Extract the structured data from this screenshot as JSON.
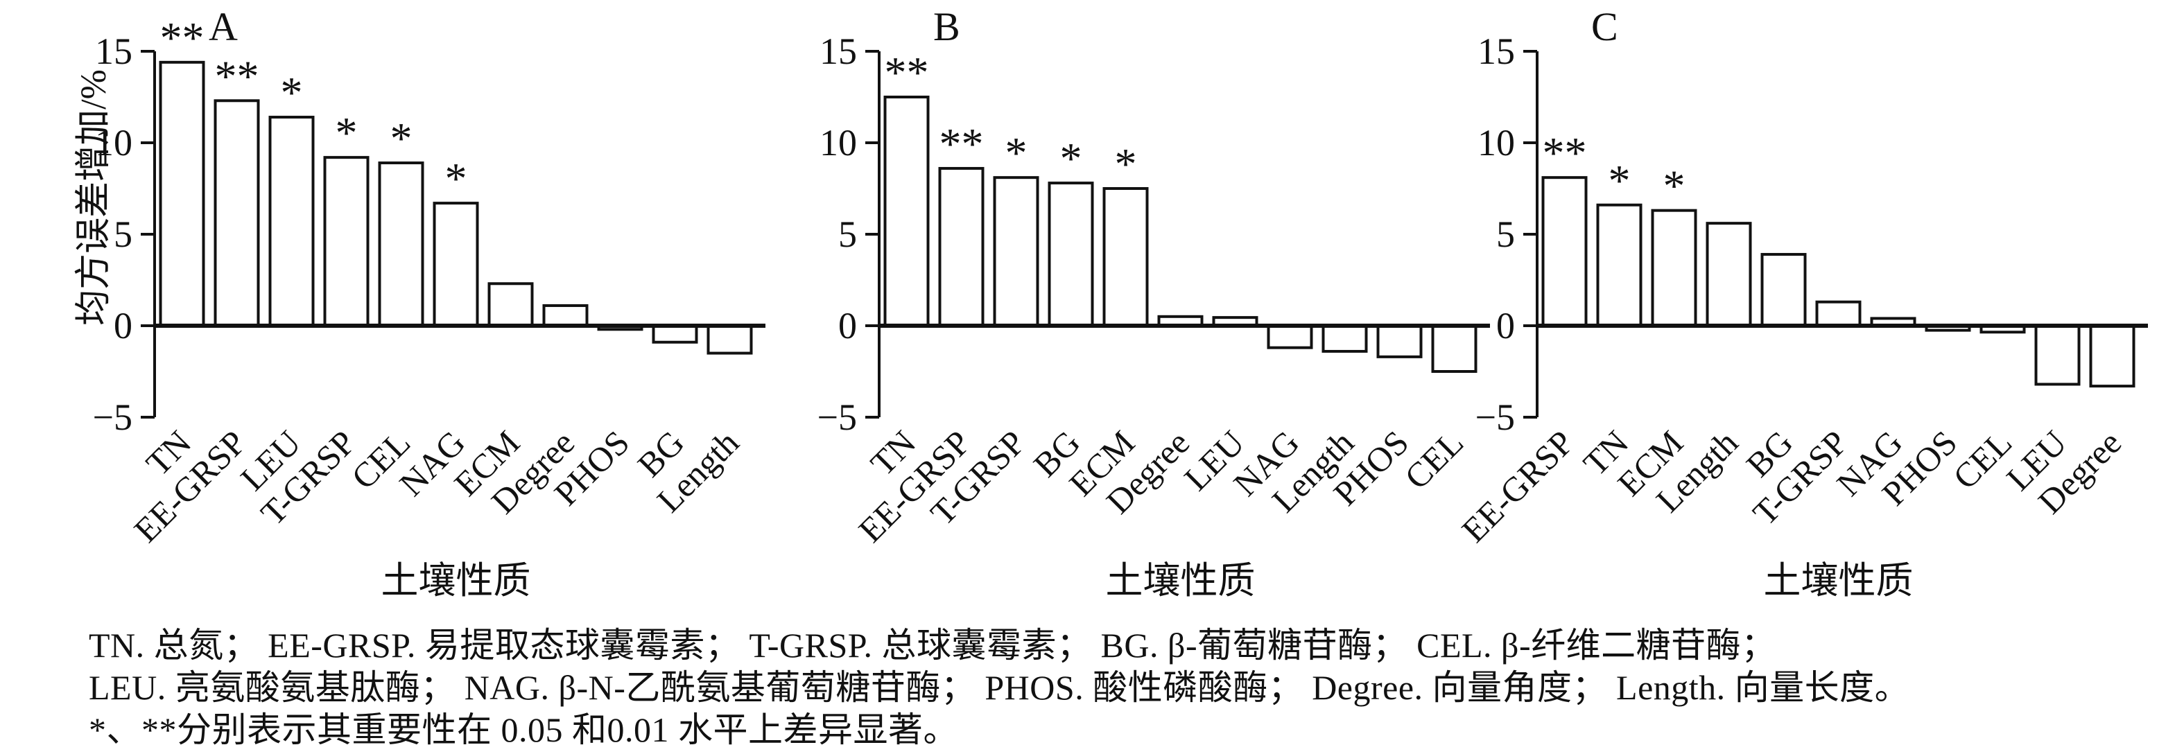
{
  "caption": {
    "lines": [
      "TN. 总氮； EE-GRSP. 易提取态球囊霉素； T-GRSP. 总球囊霉素； BG. β-葡萄糖苷酶； CEL. β-纤维二糖苷酶；",
      "LEU. 亮氨酸氨基肽酶； NAG. β-N-乙酰氨基葡萄糖苷酶； PHOS. 酸性磷酸酶； Degree. 向量角度； Length. 向量长度。",
      "*、**分别表示其重要性在 0.05 和0.01 水平上差异显著。"
    ]
  },
  "chart_data": [
    {
      "type": "bar",
      "panel_label": "A",
      "ylabel": "均方误差增加/%",
      "xlabel": "土壤性质",
      "ylim": [
        -5,
        15
      ],
      "yticks": [
        15,
        10,
        5,
        0,
        -5
      ],
      "grid": false,
      "bar_fill": "#ffffff",
      "bar_stroke": "#111111",
      "categories": [
        "TN",
        "EE-GRSP",
        "LEU",
        "T-GRSP",
        "CEL",
        "NAG",
        "ECM",
        "Degree",
        "PHOS",
        "BG",
        "Length"
      ],
      "values": [
        14.4,
        12.3,
        11.4,
        9.2,
        8.9,
        6.7,
        2.3,
        1.1,
        -0.2,
        -0.9,
        -1.5
      ],
      "significance": [
        "**",
        "**",
        "*",
        "*",
        "*",
        "*",
        "",
        "",
        "",
        "",
        ""
      ]
    },
    {
      "type": "bar",
      "panel_label": "B",
      "ylabel": "",
      "xlabel": "土壤性质",
      "ylim": [
        -5,
        15
      ],
      "yticks": [
        15,
        10,
        5,
        0,
        -5
      ],
      "grid": false,
      "bar_fill": "#ffffff",
      "bar_stroke": "#111111",
      "categories": [
        "TN",
        "EE-GRSP",
        "T-GRSP",
        "BG",
        "ECM",
        "Degree",
        "LEU",
        "NAG",
        "Length",
        "PHOS",
        "CEL"
      ],
      "values": [
        12.5,
        8.6,
        8.1,
        7.8,
        7.5,
        0.5,
        0.45,
        -1.2,
        -1.4,
        -1.7,
        -2.5
      ],
      "significance": [
        "**",
        "**",
        "*",
        "*",
        "*",
        "",
        "",
        "",
        "",
        "",
        ""
      ]
    },
    {
      "type": "bar",
      "panel_label": "C",
      "ylabel": "",
      "xlabel": "土壤性质",
      "ylim": [
        -5,
        15
      ],
      "yticks": [
        15,
        10,
        5,
        0,
        -5
      ],
      "grid": false,
      "bar_fill": "#ffffff",
      "bar_stroke": "#111111",
      "categories": [
        "EE-GRSP",
        "TN",
        "ECM",
        "Length",
        "BG",
        "T-GRSP",
        "NAG",
        "PHOS",
        "CEL",
        "LEU",
        "Degree"
      ],
      "values": [
        8.1,
        6.6,
        6.3,
        5.6,
        3.9,
        1.3,
        0.4,
        -0.25,
        -0.35,
        -3.2,
        -3.3
      ],
      "significance": [
        "**",
        "*",
        "*",
        "",
        "",
        "",
        "",
        "",
        "",
        "",
        ""
      ]
    }
  ]
}
